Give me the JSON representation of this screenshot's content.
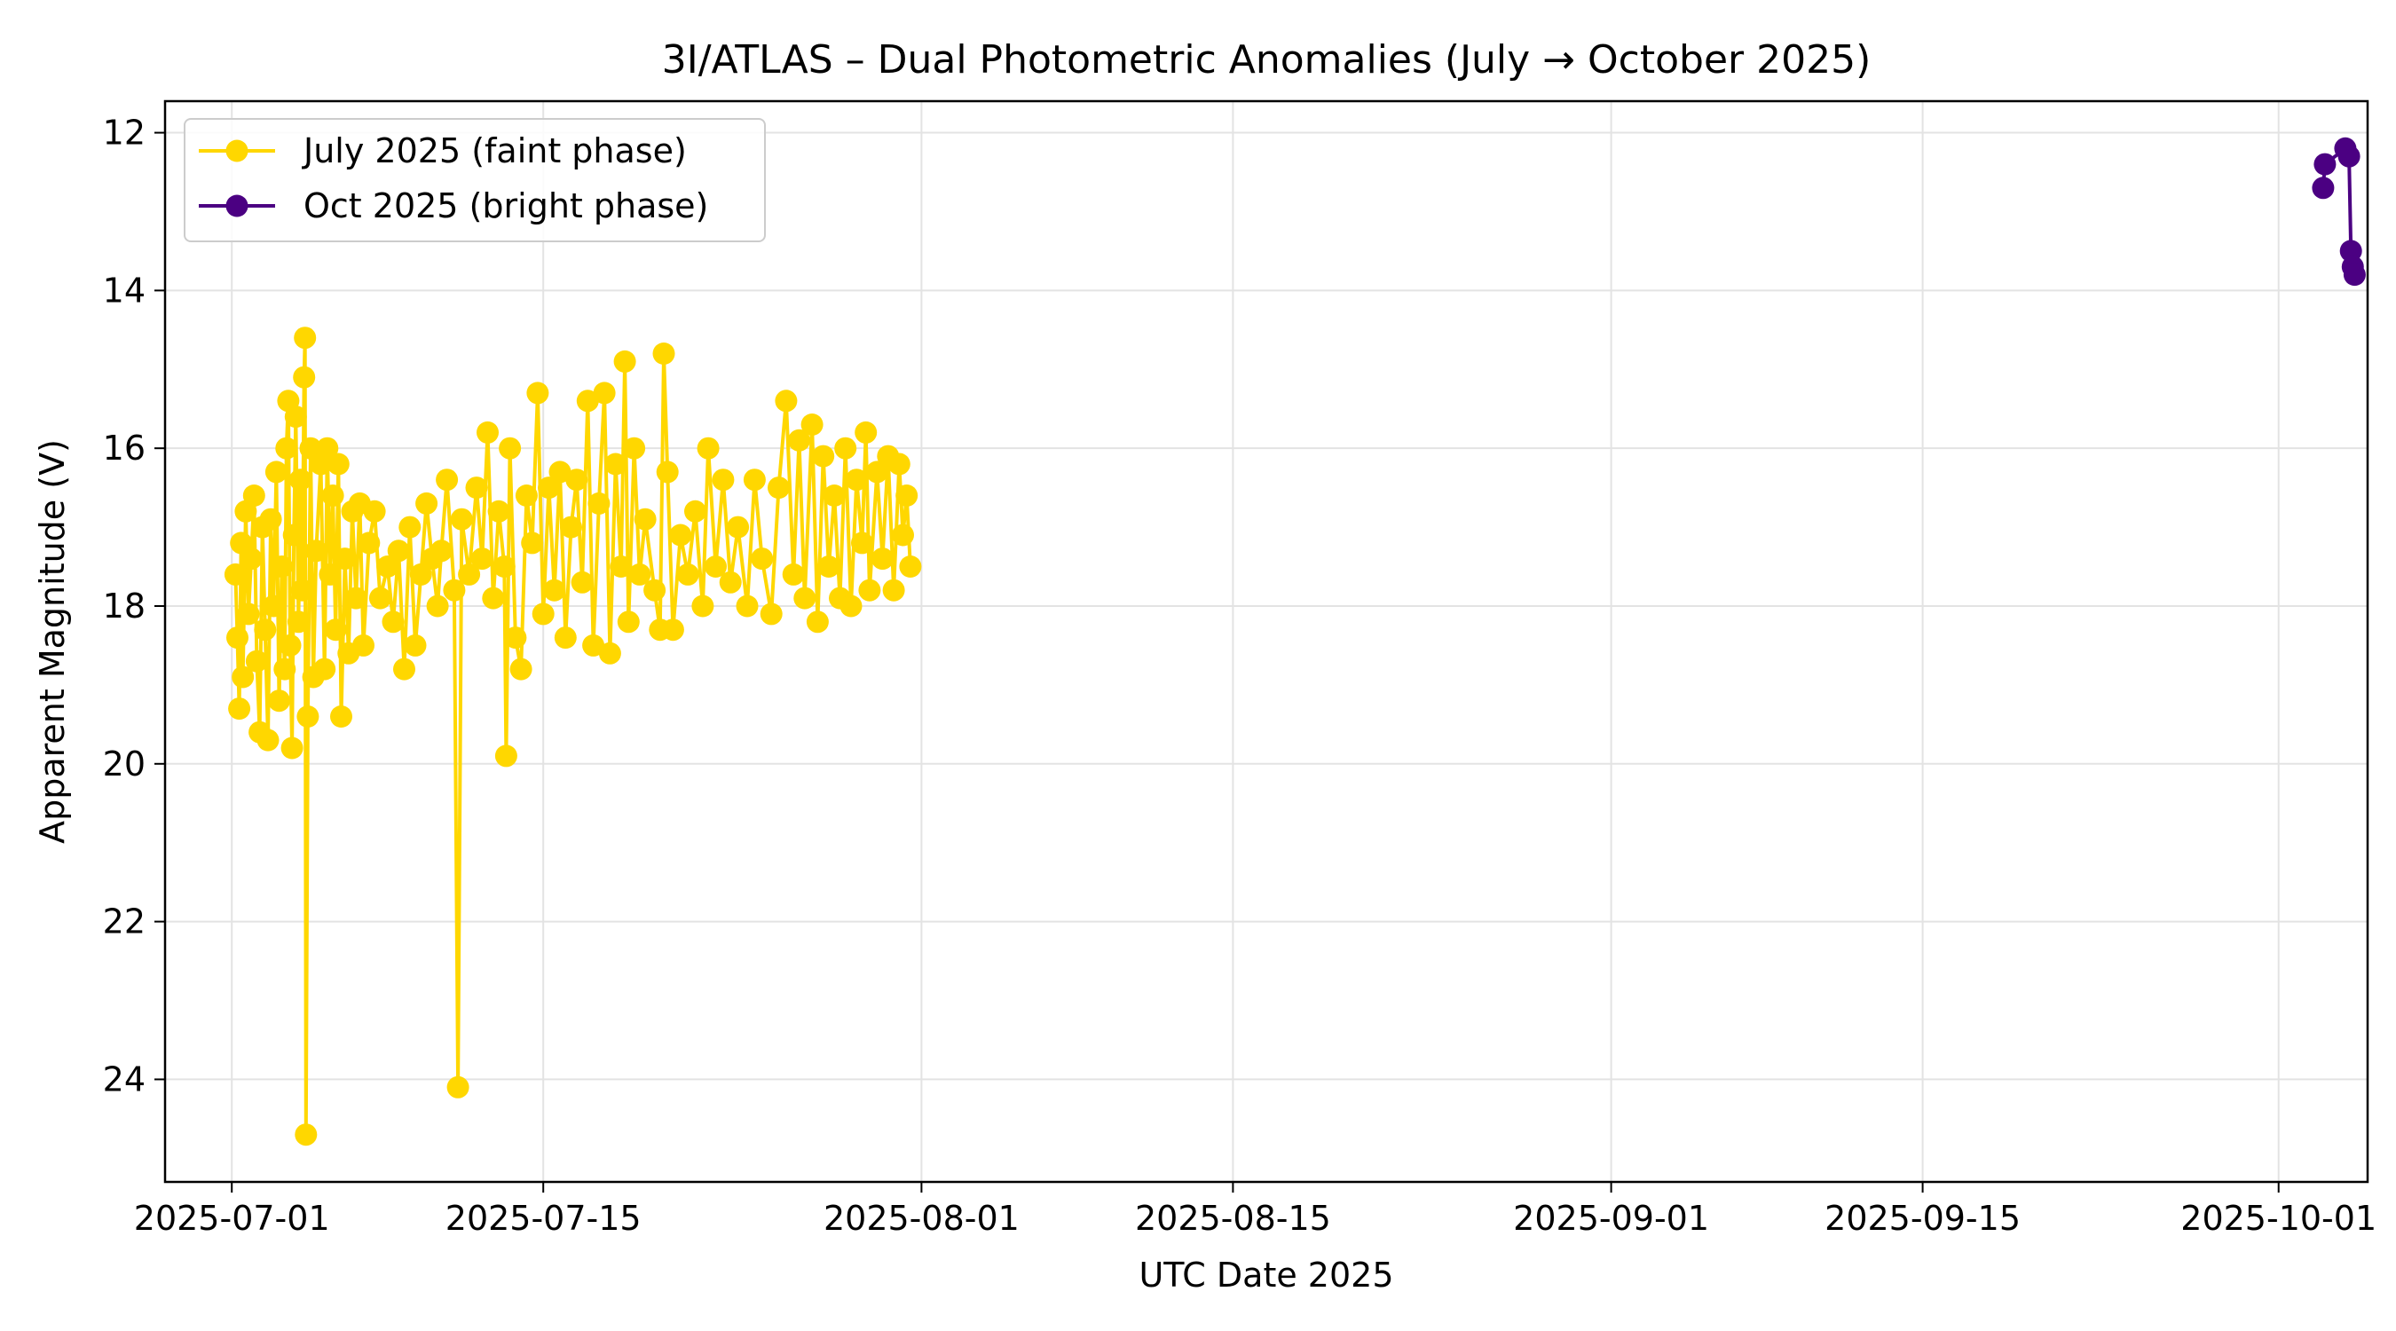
{
  "chart_data": {
    "type": "line",
    "title": "3I/ATLAS – Dual Photometric Anomalies (July → October 2025)",
    "xlabel": "UTC Date 2025",
    "ylabel": "Apparent Magnitude (V)",
    "x_axis": "date",
    "xlim": [
      "2025-06-28",
      "2025-10-05"
    ],
    "ylim": [
      25.3,
      11.6
    ],
    "y_inverted": true,
    "grid": true,
    "legend_position": "top-left",
    "x_ticks": [
      "2025-07-01",
      "2025-07-15",
      "2025-08-01",
      "2025-08-15",
      "2025-09-01",
      "2025-09-15",
      "2025-10-01"
    ],
    "y_ticks": [
      12,
      14,
      16,
      18,
      20,
      22,
      24
    ],
    "series": [
      {
        "name": "July 2025 (faint phase)",
        "color": "#FFD700",
        "points": [
          [
            "2025-07-01 04:00",
            17.6
          ],
          [
            "2025-07-01 06:00",
            18.4
          ],
          [
            "2025-07-01 08:00",
            19.3
          ],
          [
            "2025-07-01 10:00",
            17.2
          ],
          [
            "2025-07-01 12:00",
            18.9
          ],
          [
            "2025-07-01 15:00",
            16.8
          ],
          [
            "2025-07-01 18:00",
            18.1
          ],
          [
            "2025-07-01 21:00",
            17.4
          ],
          [
            "2025-07-02 00:00",
            16.6
          ],
          [
            "2025-07-02 03:00",
            18.7
          ],
          [
            "2025-07-02 06:00",
            19.6
          ],
          [
            "2025-07-02 09:00",
            17.0
          ],
          [
            "2025-07-02 12:00",
            18.3
          ],
          [
            "2025-07-02 15:00",
            19.7
          ],
          [
            "2025-07-02 18:00",
            16.9
          ],
          [
            "2025-07-02 21:00",
            18.0
          ],
          [
            "2025-07-03 00:00",
            16.3
          ],
          [
            "2025-07-03 03:00",
            19.2
          ],
          [
            "2025-07-03 06:00",
            17.5
          ],
          [
            "2025-07-03 09:00",
            18.8
          ],
          [
            "2025-07-03 11:00",
            16.0
          ],
          [
            "2025-07-03 13:00",
            15.4
          ],
          [
            "2025-07-03 15:00",
            18.5
          ],
          [
            "2025-07-03 17:00",
            19.8
          ],
          [
            "2025-07-03 19:00",
            17.1
          ],
          [
            "2025-07-03 21:00",
            15.6
          ],
          [
            "2025-07-04 00:00",
            18.2
          ],
          [
            "2025-07-04 02:00",
            16.4
          ],
          [
            "2025-07-04 04:00",
            17.8
          ],
          [
            "2025-07-04 06:00",
            15.1
          ],
          [
            "2025-07-04 07:00",
            14.6
          ],
          [
            "2025-07-04 08:00",
            24.7
          ],
          [
            "2025-07-04 10:00",
            19.4
          ],
          [
            "2025-07-04 13:00",
            16.0
          ],
          [
            "2025-07-04 16:00",
            18.9
          ],
          [
            "2025-07-04 19:00",
            17.3
          ],
          [
            "2025-07-05 00:00",
            16.2
          ],
          [
            "2025-07-05 04:00",
            18.8
          ],
          [
            "2025-07-05 07:00",
            16.0
          ],
          [
            "2025-07-05 10:00",
            17.6
          ],
          [
            "2025-07-05 13:00",
            16.6
          ],
          [
            "2025-07-05 16:00",
            18.3
          ],
          [
            "2025-07-05 19:00",
            16.2
          ],
          [
            "2025-07-05 22:00",
            19.4
          ],
          [
            "2025-07-06 02:00",
            17.4
          ],
          [
            "2025-07-06 06:00",
            18.6
          ],
          [
            "2025-07-06 10:00",
            16.8
          ],
          [
            "2025-07-06 14:00",
            17.9
          ],
          [
            "2025-07-06 18:00",
            16.7
          ],
          [
            "2025-07-06 22:00",
            18.5
          ],
          [
            "2025-07-07 04:00",
            17.2
          ],
          [
            "2025-07-07 10:00",
            16.8
          ],
          [
            "2025-07-07 16:00",
            17.9
          ],
          [
            "2025-07-08 00:00",
            17.5
          ],
          [
            "2025-07-08 06:00",
            18.2
          ],
          [
            "2025-07-08 12:00",
            17.3
          ],
          [
            "2025-07-08 18:00",
            18.8
          ],
          [
            "2025-07-09 00:00",
            17.0
          ],
          [
            "2025-07-09 06:00",
            18.5
          ],
          [
            "2025-07-09 12:00",
            17.6
          ],
          [
            "2025-07-09 18:00",
            16.7
          ],
          [
            "2025-07-10 00:00",
            17.4
          ],
          [
            "2025-07-10 06:00",
            18.0
          ],
          [
            "2025-07-10 10:00",
            17.3
          ],
          [
            "2025-07-10 16:00",
            16.4
          ],
          [
            "2025-07-11 00:00",
            17.8
          ],
          [
            "2025-07-11 04:00",
            24.1
          ],
          [
            "2025-07-11 08:00",
            16.9
          ],
          [
            "2025-07-11 16:00",
            17.6
          ],
          [
            "2025-07-12 00:00",
            16.5
          ],
          [
            "2025-07-12 06:00",
            17.4
          ],
          [
            "2025-07-12 12:00",
            15.8
          ],
          [
            "2025-07-12 18:00",
            17.9
          ],
          [
            "2025-07-13 00:00",
            16.8
          ],
          [
            "2025-07-13 06:00",
            17.5
          ],
          [
            "2025-07-13 08:00",
            19.9
          ],
          [
            "2025-07-13 12:00",
            16.0
          ],
          [
            "2025-07-13 18:00",
            18.4
          ],
          [
            "2025-07-14 00:00",
            18.8
          ],
          [
            "2025-07-14 06:00",
            16.6
          ],
          [
            "2025-07-14 12:00",
            17.2
          ],
          [
            "2025-07-14 18:00",
            15.3
          ],
          [
            "2025-07-15 00:00",
            18.1
          ],
          [
            "2025-07-15 06:00",
            16.5
          ],
          [
            "2025-07-15 12:00",
            17.8
          ],
          [
            "2025-07-15 18:00",
            16.3
          ],
          [
            "2025-07-16 00:00",
            18.4
          ],
          [
            "2025-07-16 06:00",
            17.0
          ],
          [
            "2025-07-16 12:00",
            16.4
          ],
          [
            "2025-07-16 18:00",
            17.7
          ],
          [
            "2025-07-17 00:00",
            15.4
          ],
          [
            "2025-07-17 06:00",
            18.5
          ],
          [
            "2025-07-17 12:00",
            16.7
          ],
          [
            "2025-07-17 18:00",
            15.3
          ],
          [
            "2025-07-18 00:00",
            18.6
          ],
          [
            "2025-07-18 06:00",
            16.2
          ],
          [
            "2025-07-18 12:00",
            17.5
          ],
          [
            "2025-07-18 16:00",
            14.9
          ],
          [
            "2025-07-18 20:00",
            18.2
          ],
          [
            "2025-07-19 02:00",
            16.0
          ],
          [
            "2025-07-19 08:00",
            17.6
          ],
          [
            "2025-07-19 14:00",
            16.9
          ],
          [
            "2025-07-20 00:00",
            17.8
          ],
          [
            "2025-07-20 06:00",
            18.3
          ],
          [
            "2025-07-20 10:00",
            14.8
          ],
          [
            "2025-07-20 14:00",
            16.3
          ],
          [
            "2025-07-20 20:00",
            18.3
          ],
          [
            "2025-07-21 04:00",
            17.1
          ],
          [
            "2025-07-21 12:00",
            17.6
          ],
          [
            "2025-07-21 20:00",
            16.8
          ],
          [
            "2025-07-22 04:00",
            18.0
          ],
          [
            "2025-07-22 10:00",
            16.0
          ],
          [
            "2025-07-22 18:00",
            17.5
          ],
          [
            "2025-07-23 02:00",
            16.4
          ],
          [
            "2025-07-23 10:00",
            17.7
          ],
          [
            "2025-07-23 18:00",
            17.0
          ],
          [
            "2025-07-24 04:00",
            18.0
          ],
          [
            "2025-07-24 12:00",
            16.4
          ],
          [
            "2025-07-24 20:00",
            17.4
          ],
          [
            "2025-07-25 06:00",
            18.1
          ],
          [
            "2025-07-25 14:00",
            16.5
          ],
          [
            "2025-07-25 22:00",
            15.4
          ],
          [
            "2025-07-26 06:00",
            17.6
          ],
          [
            "2025-07-26 12:00",
            15.9
          ],
          [
            "2025-07-26 18:00",
            17.9
          ],
          [
            "2025-07-27 02:00",
            15.7
          ],
          [
            "2025-07-27 08:00",
            18.2
          ],
          [
            "2025-07-27 14:00",
            16.1
          ],
          [
            "2025-07-27 20:00",
            17.5
          ],
          [
            "2025-07-28 02:00",
            16.6
          ],
          [
            "2025-07-28 08:00",
            17.9
          ],
          [
            "2025-07-28 14:00",
            16.0
          ],
          [
            "2025-07-28 20:00",
            18.0
          ],
          [
            "2025-07-29 02:00",
            16.4
          ],
          [
            "2025-07-29 08:00",
            17.2
          ],
          [
            "2025-07-29 12:00",
            15.8
          ],
          [
            "2025-07-29 16:00",
            17.8
          ],
          [
            "2025-07-30 00:00",
            16.3
          ],
          [
            "2025-07-30 06:00",
            17.4
          ],
          [
            "2025-07-30 12:00",
            16.1
          ],
          [
            "2025-07-30 18:00",
            17.8
          ],
          [
            "2025-07-31 00:00",
            16.2
          ],
          [
            "2025-07-31 04:00",
            17.1
          ],
          [
            "2025-07-31 08:00",
            16.6
          ],
          [
            "2025-07-31 12:00",
            17.5
          ]
        ]
      },
      {
        "name": "Oct 2025 (bright phase)",
        "color": "#4B0082",
        "points": [
          [
            "2025-10-03 00:00",
            12.7
          ],
          [
            "2025-10-03 02:00",
            12.4
          ],
          [
            "2025-10-04 00:00",
            12.2
          ],
          [
            "2025-10-04 04:00",
            12.3
          ],
          [
            "2025-10-04 06:00",
            13.5
          ],
          [
            "2025-10-04 08:00",
            13.7
          ],
          [
            "2025-10-04 10:00",
            13.8
          ]
        ]
      }
    ]
  }
}
